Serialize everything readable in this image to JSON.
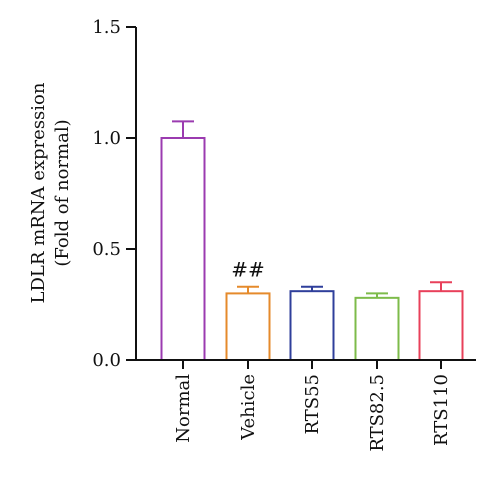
{
  "chart_data": {
    "type": "bar",
    "ylabel_line1": "LDLR mRNA expression",
    "ylabel_line2": "(Fold of normal)",
    "ylim": [
      0,
      1.5
    ],
    "yticks": [
      "0.0",
      "0.5",
      "1.0",
      "1.5"
    ],
    "yticks_values": [
      0,
      0.5,
      1.0,
      1.5
    ],
    "categories": [
      "Normal",
      "Vehicle",
      "RTS55",
      "RTS82.5",
      "RTS110"
    ],
    "values": [
      1.0,
      0.3,
      0.31,
      0.28,
      0.31
    ],
    "errors": [
      0.075,
      0.03,
      0.02,
      0.02,
      0.04
    ],
    "colors": [
      "#9b3bb0",
      "#e58a2b",
      "#2f3f9b",
      "#7dbb4a",
      "#e8405a"
    ],
    "annotations": [
      {
        "category": "Vehicle",
        "text": "##"
      }
    ],
    "grid": false,
    "legend": "none"
  }
}
